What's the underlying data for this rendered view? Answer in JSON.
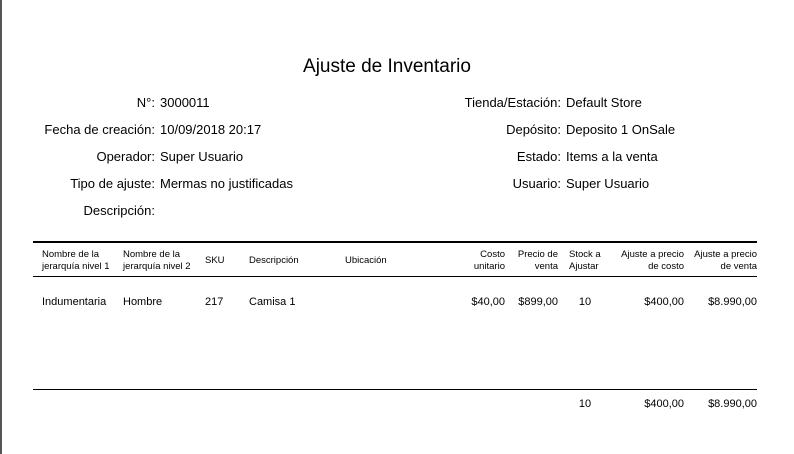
{
  "title": "Ajuste de Inventario",
  "left_fields": [
    {
      "label": "N°:",
      "value": "3000011"
    },
    {
      "label": "Fecha de creación:",
      "value": "10/09/2018 20:17"
    },
    {
      "label": "Operador:",
      "value": "Super Usuario"
    },
    {
      "label": "Tipo de ajuste:",
      "value": "Mermas no justificadas"
    },
    {
      "label": "Descripción:",
      "value": ""
    }
  ],
  "right_fields": [
    {
      "label": "Tienda/Estación:",
      "value": "Default Store"
    },
    {
      "label": "Depósito:",
      "value": "Deposito 1 OnSale"
    },
    {
      "label": "Estado:",
      "value": "Items a la venta"
    },
    {
      "label": "Usuario:",
      "value": "Super Usuario"
    }
  ],
  "table": {
    "headers": [
      [
        "Nombre de la",
        "jerarquía nivel 1"
      ],
      [
        "Nombre de la",
        "jerarquía nivel 2"
      ],
      [
        "SKU",
        ""
      ],
      [
        "Descripción",
        ""
      ],
      [
        "Ubicación",
        ""
      ],
      [
        "Costo",
        "unitario"
      ],
      [
        "Precio de",
        "venta"
      ],
      [
        "Stock a",
        "Ajustar"
      ],
      [
        "Ajuste a precio",
        "de costo"
      ],
      [
        "Ajuste a precio",
        "de venta"
      ]
    ],
    "rows": [
      [
        "Indumentaria",
        "Hombre",
        "217",
        "Camisa 1",
        "",
        "$40,00",
        "$899,00",
        "10",
        "$400,00",
        "$8.990,00"
      ]
    ],
    "totals": {
      "stock": "10",
      "ajuste_costo": "$400,00",
      "ajuste_venta": "$8.990,00"
    }
  }
}
